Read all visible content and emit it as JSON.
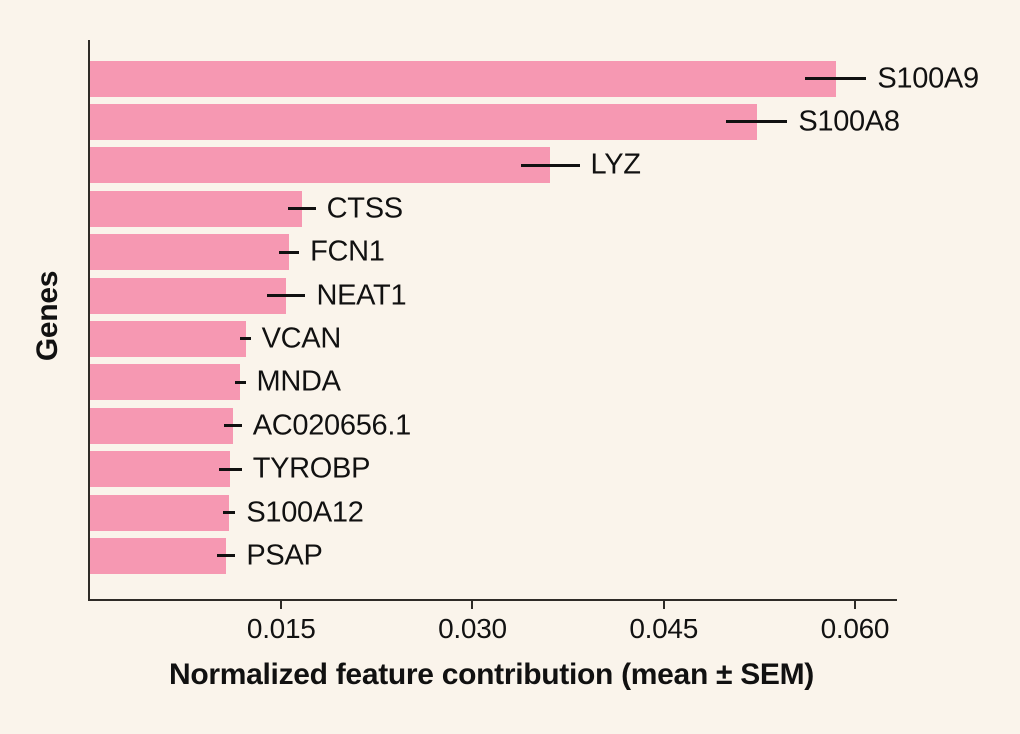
{
  "page": {
    "background_color": "#faf4eb",
    "text_color": "#111111",
    "axis_color": "#2e2b27"
  },
  "chart": {
    "y_axis_title": "Genes",
    "x_axis_title": "Normalized feature contribution (mean ± SEM)"
  },
  "chart_data": {
    "type": "bar",
    "orientation": "horizontal",
    "title": "",
    "xlabel": "Normalized feature contribution (mean ± SEM)",
    "ylabel": "Genes",
    "xlim": [
      0,
      0.0633
    ],
    "xticks": [
      0.015,
      0.03,
      0.045,
      0.06
    ],
    "xtick_labels": [
      "0.015",
      "0.030",
      "0.045",
      "0.060"
    ],
    "grid": false,
    "legend": false,
    "bar_color": "#f698b2",
    "error_bar_color": "#111111",
    "categories": [
      "S100A9",
      "S100A8",
      "LYZ",
      "CTSS",
      "FCN1",
      "NEAT1",
      "VCAN",
      "MNDA",
      "AC020656.1",
      "TYROBP",
      "S100A12",
      "PSAP"
    ],
    "series": [
      {
        "name": "Normalized feature contribution (mean)",
        "values": [
          0.0585,
          0.0523,
          0.0361,
          0.0166,
          0.0156,
          0.0154,
          0.0122,
          0.0118,
          0.0112,
          0.011,
          0.0109,
          0.0107
        ],
        "sem": [
          0.0024,
          0.0024,
          0.0023,
          0.0011,
          0.0008,
          0.0015,
          0.0004,
          0.0004,
          0.0007,
          0.0009,
          0.0005,
          0.0007
        ]
      }
    ]
  }
}
